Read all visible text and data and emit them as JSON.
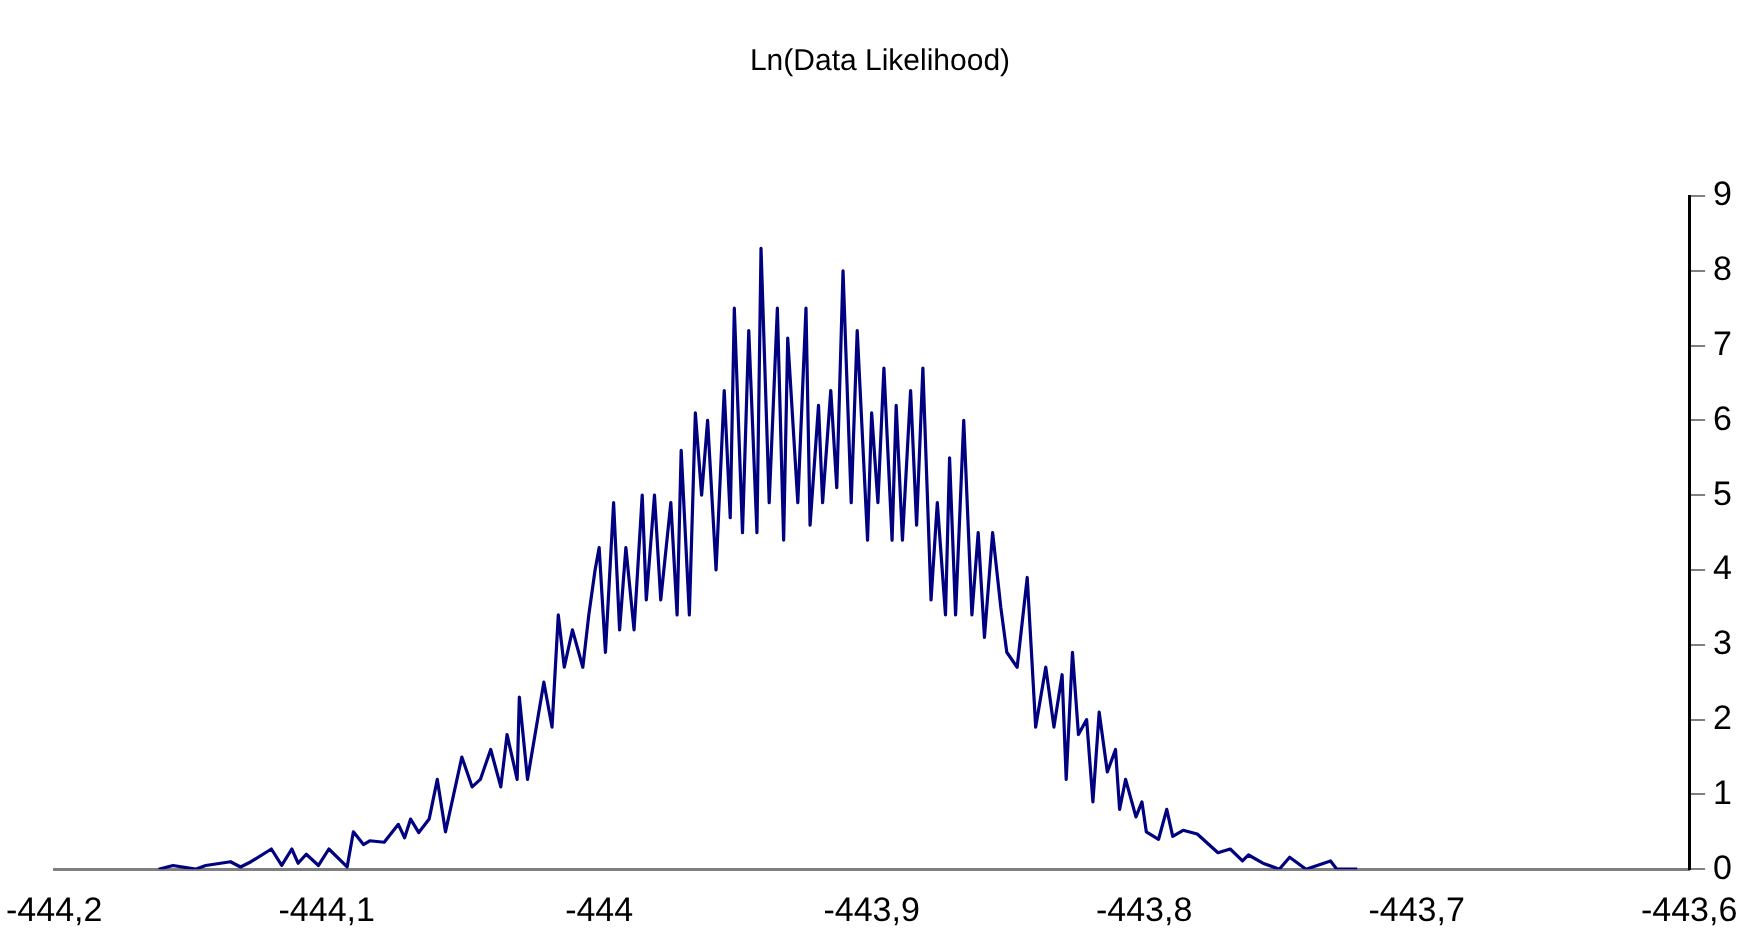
{
  "chart_data": {
    "type": "line",
    "title": "Ln(Data Likelihood)",
    "color": "#000080",
    "x": [
      -444.1617,
      -444.1564,
      -444.1481,
      -444.1444,
      -444.1353,
      -444.1316,
      -444.1278,
      -444.1203,
      -444.1165,
      -444.1128,
      -444.1105,
      -444.1075,
      -444.103,
      -444.0992,
      -444.0925,
      -444.0902,
      -444.0865,
      -444.0842,
      -444.0789,
      -444.0737,
      -444.0714,
      -444.0692,
      -444.0662,
      -444.0624,
      -444.0594,
      -444.0564,
      -444.0504,
      -444.0466,
      -444.0436,
      -444.0398,
      -444.0361,
      -444.0338,
      -444.0301,
      -444.0293,
      -444.0263,
      -444.0203,
      -444.0173,
      -444.015,
      -444.0128,
      -444.0098,
      -444.006,
      -444.0038,
      -444.0015,
      -444.0,
      -443.9977,
      -443.9947,
      -443.9925,
      -443.9902,
      -443.9872,
      -443.9842,
      -443.9827,
      -443.9797,
      -443.9774,
      -443.9737,
      -443.9714,
      -443.9699,
      -443.9669,
      -443.9647,
      -443.9624,
      -443.9602,
      -443.9571,
      -443.9541,
      -443.9519,
      -443.9504,
      -443.9474,
      -443.9451,
      -443.9421,
      -443.9406,
      -443.9376,
      -443.9346,
      -443.9323,
      -443.9308,
      -443.9271,
      -443.9241,
      -443.9226,
      -443.9195,
      -443.918,
      -443.915,
      -443.9128,
      -443.9105,
      -443.9075,
      -443.9053,
      -443.9015,
      -443.9,
      -443.8977,
      -443.8955,
      -443.8925,
      -443.891,
      -443.8887,
      -443.8857,
      -443.8835,
      -443.8812,
      -443.8782,
      -443.8759,
      -443.8729,
      -443.8714,
      -443.8692,
      -443.8662,
      -443.8632,
      -443.8609,
      -443.8586,
      -443.8556,
      -443.8526,
      -443.8504,
      -443.8466,
      -443.8429,
      -443.8398,
      -443.8361,
      -443.8331,
      -443.8301,
      -443.8286,
      -443.8263,
      -443.8241,
      -443.8211,
      -443.8188,
      -443.8165,
      -443.8135,
      -443.8105,
      -443.809,
      -443.8068,
      -443.803,
      -443.8008,
      -443.7992,
      -443.7947,
      -443.7917,
      -443.7895,
      -443.7857,
      -443.7805,
      -443.7729,
      -443.7684,
      -443.7639,
      -443.7617,
      -443.7564,
      -443.7504,
      -443.7466,
      -443.7406,
      -443.7316,
      -443.7293,
      -443.7218
    ],
    "values": [
      0,
      0.05,
      0,
      0.05,
      0.1,
      0.03,
      0.1,
      0.27,
      0.05,
      0.27,
      0.08,
      0.2,
      0.05,
      0.27,
      0.03,
      0.5,
      0.33,
      0.38,
      0.36,
      0.6,
      0.42,
      0.67,
      0.49,
      0.67,
      1.2,
      0.5,
      1.5,
      1.1,
      1.2,
      1.6,
      1.1,
      1.8,
      1.2,
      2.3,
      1.2,
      2.5,
      1.9,
      3.4,
      2.7,
      3.2,
      2.7,
      3.4,
      4.0,
      4.3,
      2.9,
      4.9,
      3.2,
      4.3,
      3.2,
      5.0,
      3.6,
      5.0,
      3.6,
      4.9,
      3.4,
      5.6,
      3.4,
      6.1,
      5.0,
      6.0,
      4.0,
      6.4,
      4.7,
      7.5,
      4.5,
      7.2,
      4.5,
      8.3,
      4.9,
      7.5,
      4.4,
      7.1,
      4.9,
      7.5,
      4.6,
      6.2,
      4.9,
      6.4,
      5.1,
      8.0,
      4.9,
      7.2,
      4.4,
      6.1,
      4.9,
      6.7,
      4.4,
      6.2,
      4.4,
      6.4,
      4.6,
      6.7,
      3.6,
      4.9,
      3.4,
      5.5,
      3.4,
      6.0,
      3.4,
      4.5,
      3.1,
      4.5,
      3.5,
      2.9,
      2.7,
      3.9,
      1.9,
      2.7,
      1.9,
      2.6,
      1.2,
      2.9,
      1.8,
      2.0,
      0.9,
      2.1,
      1.3,
      1.6,
      0.8,
      1.2,
      0.7,
      0.9,
      0.5,
      0.4,
      0.8,
      0.44,
      0.52,
      0.47,
      0.22,
      0.27,
      0.11,
      0.19,
      0.08,
      0,
      0.16,
      0,
      0.11,
      0,
      0
    ],
    "xlim": [
      -444.2,
      -443.6
    ],
    "xticks": [
      {
        "value": -444.2,
        "label": "-444,2"
      },
      {
        "value": -444.1,
        "label": "-444,1"
      },
      {
        "value": -444,
        "label": "-444"
      },
      {
        "value": -443.9,
        "label": "-443,9"
      },
      {
        "value": -443.8,
        "label": "-443,8"
      },
      {
        "value": -443.7,
        "label": "-443,7"
      },
      {
        "value": -443.6,
        "label": "-443,6"
      }
    ],
    "ylim": [
      0,
      9
    ],
    "yticks": [
      0,
      1,
      2,
      3,
      4,
      5,
      6,
      7,
      8,
      9
    ],
    "line_style": "solid"
  }
}
